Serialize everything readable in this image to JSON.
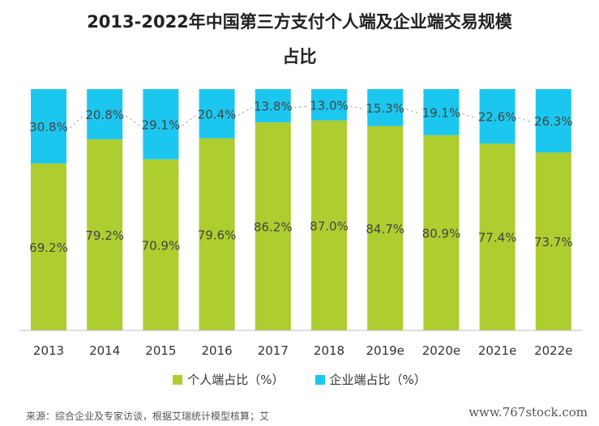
{
  "title_line1": "2013-2022年中国第三方支付个人端及企业端交易规模",
  "title_line2": "占比",
  "chart_data": {
    "type": "bar",
    "stacked": true,
    "categories": [
      "2013",
      "2014",
      "2015",
      "2016",
      "2017",
      "2018",
      "2019e",
      "2020e",
      "2021e",
      "2022e"
    ],
    "series": [
      {
        "name": "个人端占比（%）",
        "values": [
          69.2,
          79.2,
          70.9,
          79.6,
          86.2,
          87.0,
          84.7,
          80.9,
          77.4,
          73.7
        ],
        "color": "#aecd2f"
      },
      {
        "name": "企业端占比（%）",
        "values": [
          30.8,
          20.8,
          29.1,
          20.4,
          13.8,
          13.0,
          15.3,
          19.1,
          22.6,
          26.3
        ],
        "color": "#1bc7ee"
      }
    ],
    "data_labels": {
      "personal": [
        "69.2%",
        "79.2%",
        "70.9%",
        "79.6%",
        "86.2%",
        "87.0%",
        "84.7%",
        "80.9%",
        "77.4%",
        "73.7%"
      ],
      "enterprise": [
        "30.8%",
        "20.8%",
        "29.1%",
        "20.4%",
        "13.8%",
        "13.0%",
        "15.3%",
        "19.1%",
        "22.6%",
        "26.3%"
      ]
    },
    "ylim": [
      0,
      100
    ],
    "trend_line": true,
    "legend_position": "bottom"
  },
  "source_text": "来源：综合企业及专家访谈，根据艾瑞统计模型核算；艾",
  "watermark": "www.767stock.com"
}
